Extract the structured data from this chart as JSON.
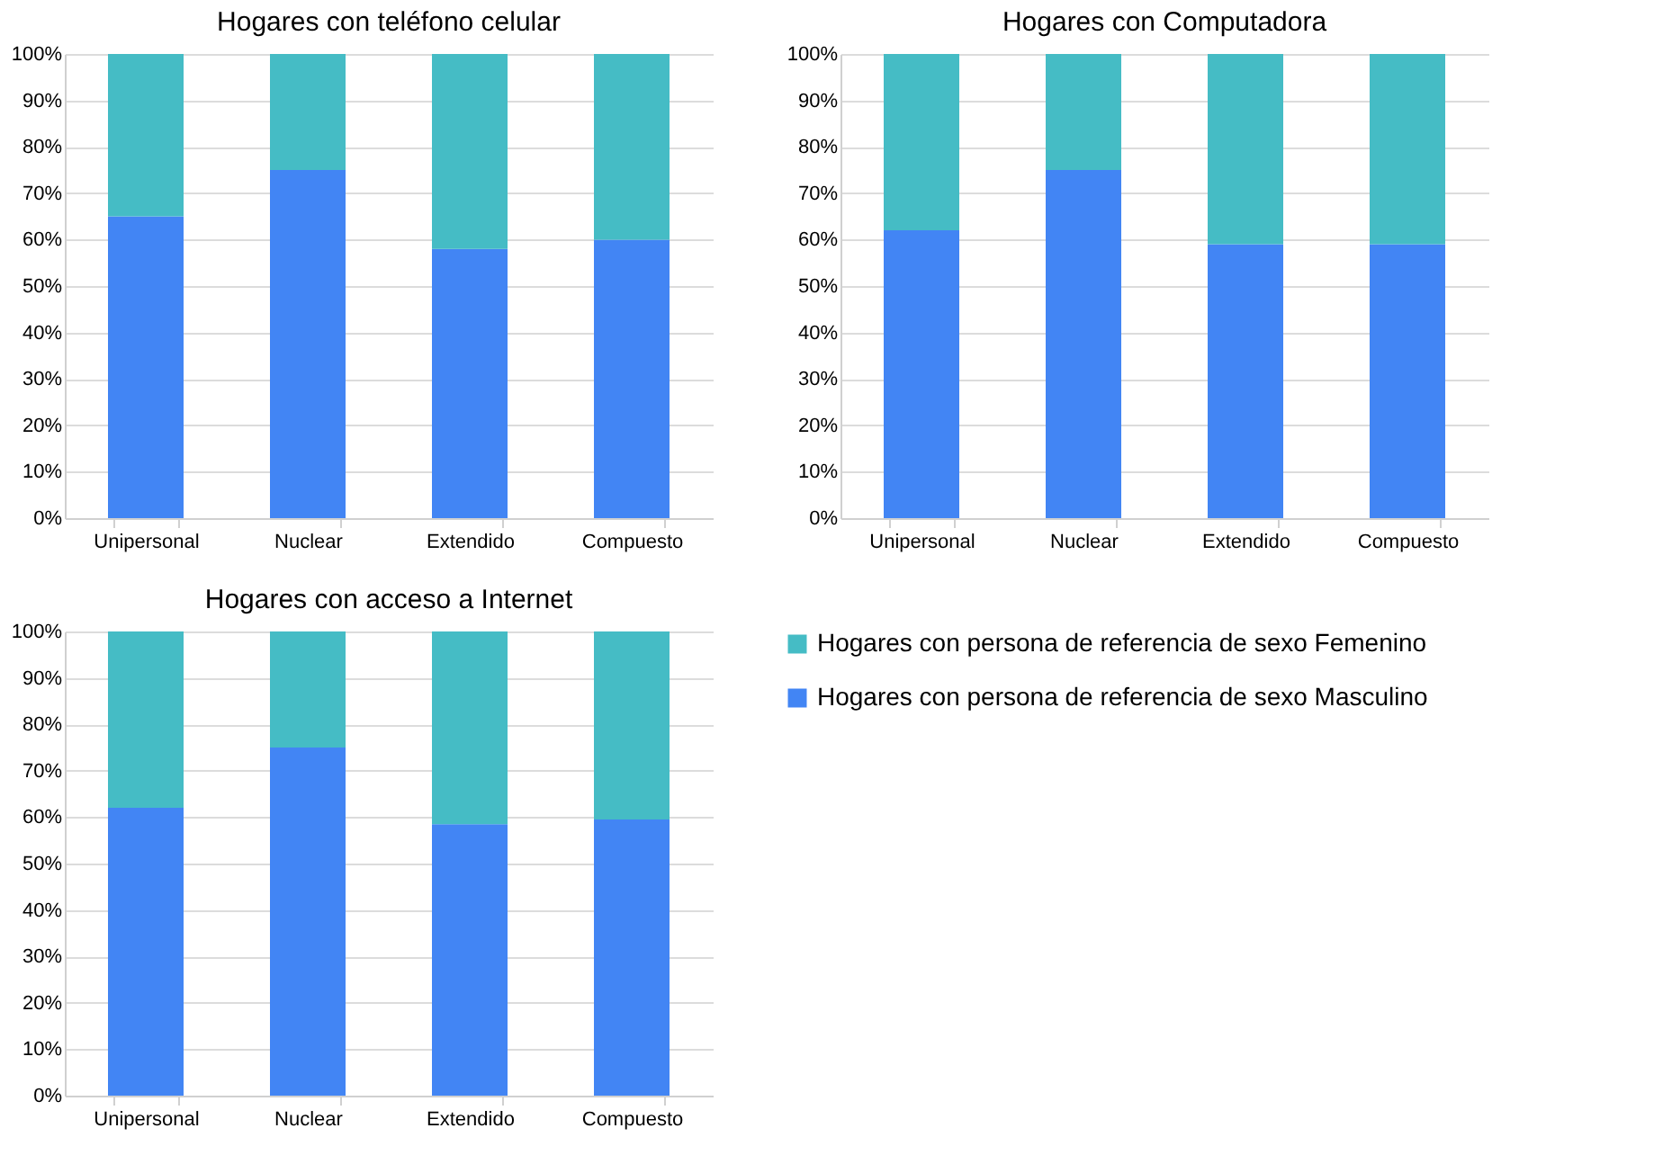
{
  "chart_data": [
    {
      "type": "bar",
      "title": "Hogares con teléfono celular",
      "stacked": true,
      "categories": [
        "Unipersonal",
        "Nuclear",
        "Extendido",
        "Compuesto"
      ],
      "ylim": [
        0,
        100
      ],
      "yticks": [
        {
          "value": 0,
          "label": "0%"
        },
        {
          "value": 10,
          "label": "10%"
        },
        {
          "value": 20,
          "label": "20%"
        },
        {
          "value": 30,
          "label": "30%"
        },
        {
          "value": 40,
          "label": "40%"
        },
        {
          "value": 50,
          "label": "50%"
        },
        {
          "value": 60,
          "label": "60%"
        },
        {
          "value": 70,
          "label": "70%"
        },
        {
          "value": 80,
          "label": "80%"
        },
        {
          "value": 90,
          "label": "90%"
        },
        {
          "value": 100,
          "label": "100%"
        }
      ],
      "grid": "y",
      "legend": false,
      "series": [
        {
          "color": "#4285f4",
          "values": [
            65,
            75,
            58,
            60
          ]
        },
        {
          "color": "#45bcc5",
          "values": [
            35,
            25,
            42,
            40
          ]
        }
      ]
    },
    {
      "type": "bar",
      "title": "Hogares con Computadora",
      "stacked": true,
      "categories": [
        "Unipersonal",
        "Nuclear",
        "Extendido",
        "Compuesto"
      ],
      "ylim": [
        0,
        100
      ],
      "yticks": [
        {
          "value": 0,
          "label": "0%"
        },
        {
          "value": 10,
          "label": "10%"
        },
        {
          "value": 20,
          "label": "20%"
        },
        {
          "value": 30,
          "label": "30%"
        },
        {
          "value": 40,
          "label": "40%"
        },
        {
          "value": 50,
          "label": "50%"
        },
        {
          "value": 60,
          "label": "60%"
        },
        {
          "value": 70,
          "label": "70%"
        },
        {
          "value": 80,
          "label": "80%"
        },
        {
          "value": 90,
          "label": "90%"
        },
        {
          "value": 100,
          "label": "100%"
        }
      ],
      "grid": "y",
      "legend": false,
      "series": [
        {
          "color": "#4285f4",
          "values": [
            62,
            75,
            59,
            59
          ]
        },
        {
          "color": "#45bcc5",
          "values": [
            38,
            25,
            41,
            41
          ]
        }
      ]
    },
    {
      "type": "bar",
      "title": "Hogares con acceso a Internet",
      "stacked": true,
      "categories": [
        "Unipersonal",
        "Nuclear",
        "Extendido",
        "Compuesto"
      ],
      "ylim": [
        0,
        100
      ],
      "yticks": [
        {
          "value": 0,
          "label": "0%"
        },
        {
          "value": 10,
          "label": "10%"
        },
        {
          "value": 20,
          "label": "20%"
        },
        {
          "value": 30,
          "label": "30%"
        },
        {
          "value": 40,
          "label": "40%"
        },
        {
          "value": 50,
          "label": "50%"
        },
        {
          "value": 60,
          "label": "60%"
        },
        {
          "value": 70,
          "label": "70%"
        },
        {
          "value": 80,
          "label": "80%"
        },
        {
          "value": 90,
          "label": "90%"
        },
        {
          "value": 100,
          "label": "100%"
        }
      ],
      "grid": "y",
      "legend": "right",
      "series": [
        {
          "name": "Hogares con persona de referencia de sexo Masculino",
          "color": "#4285f4",
          "values": [
            62,
            75,
            58.5,
            59.5
          ]
        },
        {
          "name": "Hogares con persona de referencia de sexo Femenino",
          "color": "#45bcc5",
          "values": [
            38,
            25,
            41.5,
            40.5
          ]
        }
      ]
    }
  ]
}
